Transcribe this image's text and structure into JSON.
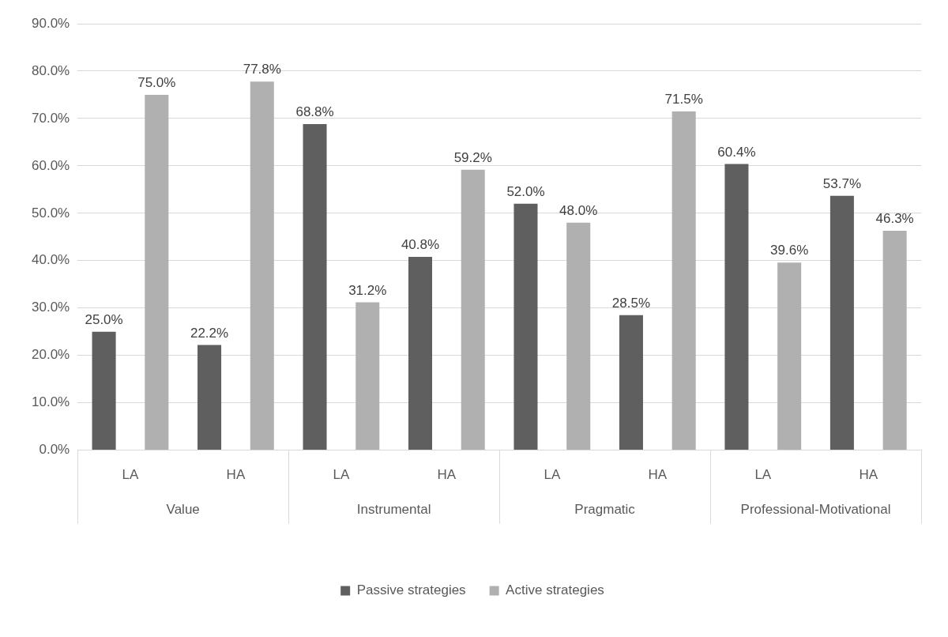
{
  "chart_data": {
    "type": "bar",
    "categories": [
      "LA",
      "HA",
      "LA",
      "HA",
      "LA",
      "HA",
      "LA",
      "HA"
    ],
    "annotations": [
      "Value",
      "Instrumental",
      "Pragmatic",
      "Professional-Motivational"
    ],
    "series": [
      {
        "name": "Passive strategies",
        "color": "#5f5f5f",
        "values": [
          25.0,
          22.2,
          68.8,
          40.8,
          52.0,
          28.5,
          60.4,
          53.7
        ],
        "value_labels": [
          "25.0%",
          "22.2%",
          "68.8%",
          "40.8%",
          "52.0%",
          "28.5%",
          "60.4%",
          "53.7%"
        ]
      },
      {
        "name": "Active strategies",
        "color": "#b0b0b0",
        "values": [
          75.0,
          77.8,
          31.2,
          59.2,
          48.0,
          71.5,
          39.6,
          46.3
        ],
        "value_labels": [
          "75.0%",
          "77.8%",
          "31.2%",
          "59.2%",
          "48.0%",
          "71.5%",
          "39.6%",
          "46.3%"
        ]
      }
    ],
    "ylim": [
      0,
      90
    ],
    "yticks": [
      {
        "value": 0,
        "label": "0.0%"
      },
      {
        "value": 10,
        "label": "10.0%"
      },
      {
        "value": 20,
        "label": "20.0%"
      },
      {
        "value": 30,
        "label": "30.0%"
      },
      {
        "value": 40,
        "label": "40.0%"
      },
      {
        "value": 50,
        "label": "50.0%"
      },
      {
        "value": 60,
        "label": "60.0%"
      },
      {
        "value": 70,
        "label": "70.0%"
      },
      {
        "value": 80,
        "label": "80.0%"
      },
      {
        "value": 90,
        "label": "90.0%"
      }
    ],
    "grid": "y",
    "legend": "bottom"
  }
}
